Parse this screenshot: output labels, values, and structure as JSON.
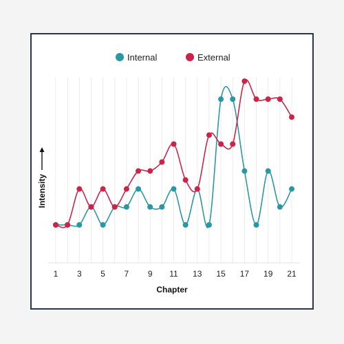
{
  "chart_data": {
    "type": "line",
    "xlabel": "Chapter",
    "ylabel": "Intensity",
    "x": [
      1,
      2,
      3,
      4,
      5,
      6,
      7,
      8,
      9,
      10,
      11,
      12,
      13,
      14,
      15,
      16,
      17,
      18,
      19,
      20,
      21
    ],
    "xticks": [
      1,
      3,
      5,
      7,
      9,
      11,
      13,
      15,
      17,
      19,
      21
    ],
    "xlim": [
      1,
      21
    ],
    "ylim": [
      0,
      9
    ],
    "grid": "vertical",
    "legend": "top-center",
    "series": [
      {
        "name": "Internal",
        "color": "#2a98a3",
        "values": [
          1,
          1,
          1,
          2,
          1,
          2,
          2,
          3,
          2,
          2,
          3,
          1,
          3,
          1,
          8,
          8,
          4,
          1,
          4,
          2,
          3
        ]
      },
      {
        "name": "External",
        "color": "#cc2448",
        "values": [
          1,
          1,
          3,
          2,
          3,
          2,
          3,
          4,
          4,
          4.5,
          5.5,
          3.5,
          3,
          6,
          5.5,
          5.5,
          9,
          8,
          8,
          8,
          7
        ]
      }
    ]
  }
}
